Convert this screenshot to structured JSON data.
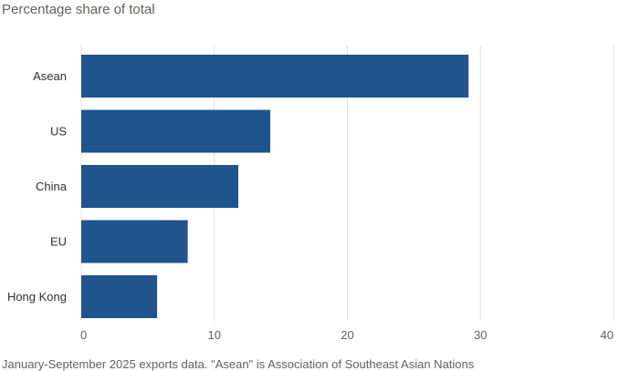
{
  "chart_data": {
    "type": "bar",
    "orientation": "horizontal",
    "title": "",
    "subtitle": "Percentage share of total",
    "categories": [
      "Asean",
      "US",
      "China",
      "EU",
      "Hong Kong"
    ],
    "values": [
      29.1,
      14.2,
      11.8,
      8.0,
      5.7
    ],
    "xlabel": "",
    "ylabel": "",
    "xlim": [
      0,
      40
    ],
    "xticks": [
      "0",
      "10",
      "20",
      "30",
      "40"
    ],
    "grid": true,
    "bar_color": "#1f548c",
    "grid_color": "#e6e0db"
  },
  "footnote": "January-September 2025 exports data. \"Asean\" is Association of Southeast Asian Nations"
}
